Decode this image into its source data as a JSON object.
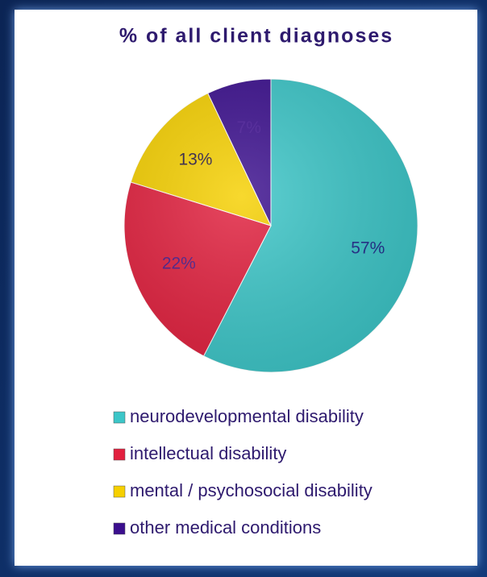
{
  "chart_data": {
    "type": "pie",
    "title": "% of all client diagnoses",
    "categories": [
      "neurodevelopmental disability",
      "intellectual disability",
      "mental / psychosocial disability",
      "other medical conditions"
    ],
    "values": [
      57,
      22,
      13,
      7
    ],
    "value_labels": [
      "57%",
      "22%",
      "13%",
      "7%"
    ],
    "colors": [
      "#3cc6c8",
      "#e2203e",
      "#f6d000",
      "#3b0f8e"
    ],
    "legend": "bottom"
  }
}
